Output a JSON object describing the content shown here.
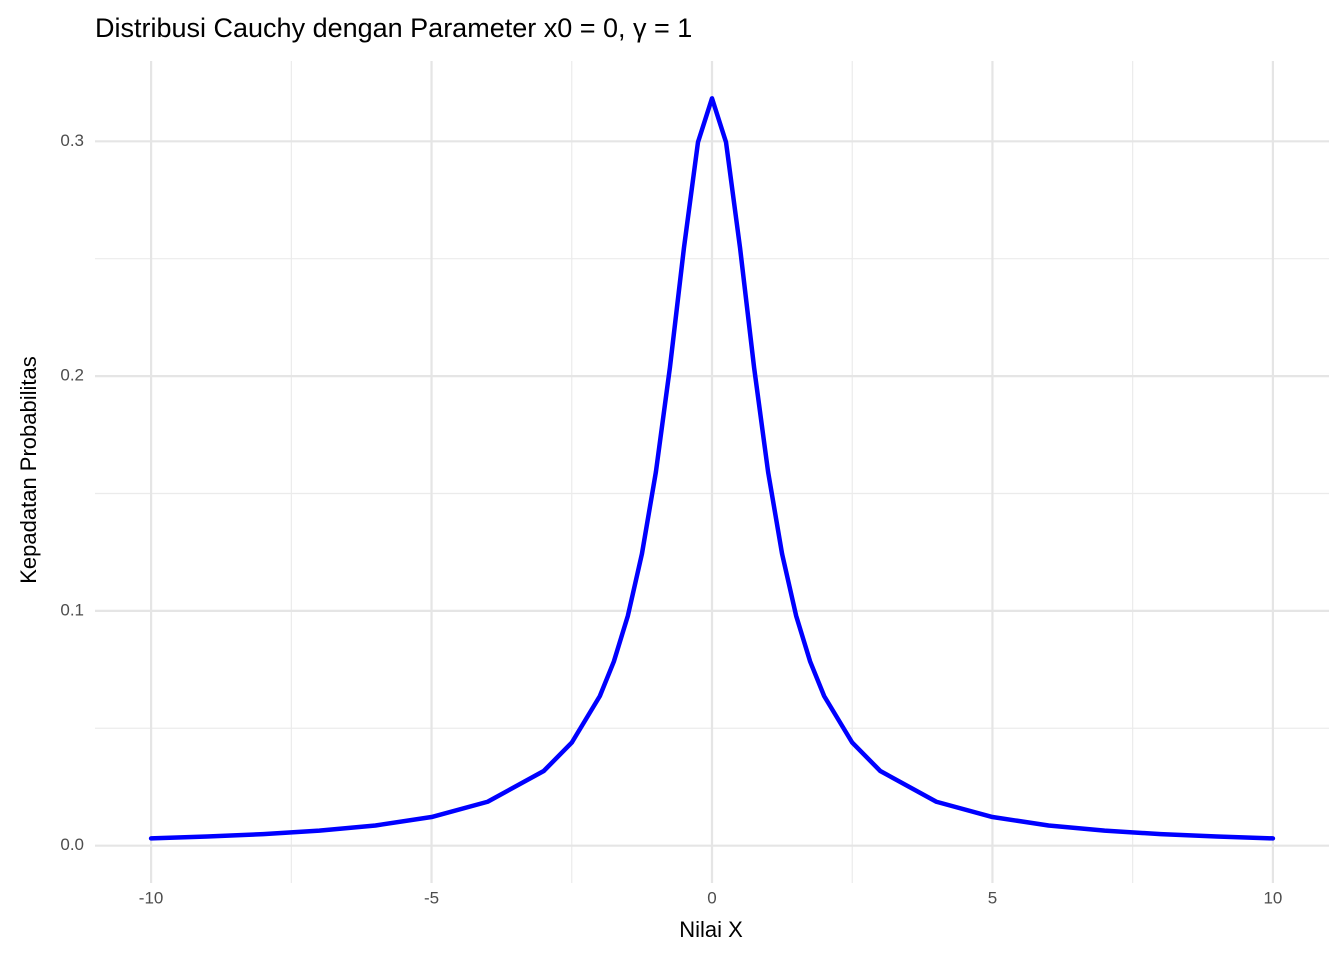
{
  "chart_data": {
    "type": "line",
    "title": "Distribusi Cauchy dengan Parameter x0 = 0, γ = 1",
    "x_label": "Nilai X",
    "y_label": "Kepadatan Probabilitas",
    "x": [
      -10,
      -9,
      -8,
      -7,
      -6,
      -5,
      -4,
      -3,
      -2.5,
      -2,
      -1.75,
      -1.5,
      -1.25,
      -1,
      -0.75,
      -0.5,
      -0.25,
      0,
      0.25,
      0.5,
      0.75,
      1,
      1.25,
      1.5,
      1.75,
      2,
      2.5,
      3,
      4,
      5,
      6,
      7,
      8,
      9,
      10
    ],
    "series": [
      {
        "color": "#0000ff",
        "values": [
          0.0031,
          0.0039,
          0.0049,
          0.0064,
          0.0086,
          0.0122,
          0.0187,
          0.0318,
          0.0439,
          0.0637,
          0.0784,
          0.0979,
          0.1242,
          0.1592,
          0.2037,
          0.2546,
          0.2996,
          0.3183,
          0.2996,
          0.2546,
          0.2037,
          0.1592,
          0.1242,
          0.0979,
          0.0784,
          0.0637,
          0.0439,
          0.0318,
          0.0187,
          0.0122,
          0.0086,
          0.0064,
          0.0049,
          0.0039,
          0.0031
        ]
      }
    ],
    "xlim": [
      -11,
      11
    ],
    "ylim": [
      -0.0159,
      0.3342
    ],
    "xticks": [
      -10,
      -5,
      0,
      5,
      10
    ],
    "yticks": [
      {
        "value": 0,
        "label": "0.0"
      },
      0.1,
      0.2,
      0.3
    ],
    "x_minor_grid": [
      -7.5,
      -2.5,
      2.5,
      7.5
    ],
    "y_minor_grid": [
      0.05,
      0.15,
      0.25
    ],
    "grid": true
  }
}
